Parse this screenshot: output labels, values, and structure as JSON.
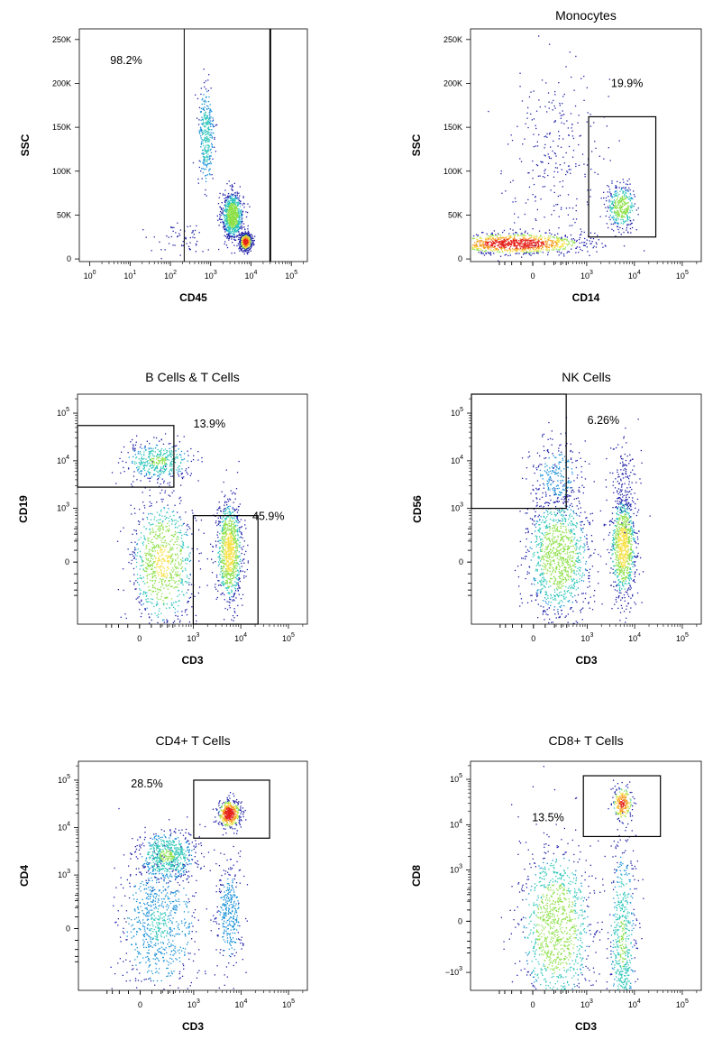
{
  "figure": {
    "colors": {
      "density": [
        "#1e1fa8",
        "#1690d8",
        "#2fc6b9",
        "#8ee04a",
        "#f7e24a",
        "#f59a22",
        "#e5231b"
      ],
      "axis": "#000000",
      "gate": "#000000"
    }
  },
  "chart_data": [
    {
      "type": "scatter",
      "title": "",
      "xlabel": "CD45",
      "ylabel": "SSC",
      "x_scale": "log",
      "y_scale": "linear",
      "xlim": [
        0.55,
        250000
      ],
      "ylim": [
        -3000,
        262144
      ],
      "x_ticks": [
        {
          "base": "10",
          "exp": "0",
          "v": 1
        },
        {
          "base": "10",
          "exp": "1",
          "v": 10
        },
        {
          "base": "10",
          "exp": "2",
          "v": 100
        },
        {
          "base": "10",
          "exp": "3",
          "v": 1000
        },
        {
          "base": "10",
          "exp": "4",
          "v": 10000
        },
        {
          "base": "10",
          "exp": "5",
          "v": 100000
        }
      ],
      "y_ticks": [
        {
          "label": "250K",
          "v": 250000
        },
        {
          "label": "200K",
          "v": 200000
        },
        {
          "label": "150K",
          "v": 150000
        },
        {
          "label": "100K",
          "v": 100000
        },
        {
          "label": "50K",
          "v": 50000
        },
        {
          "label": "0",
          "v": 0
        }
      ],
      "gates": [
        {
          "type": "range",
          "x": [
            220,
            30000
          ],
          "label": "98.2%",
          "label_at": {
            "x": 8,
            "y": 222000
          }
        }
      ],
      "populations": [
        {
          "name": "granulocytes",
          "x": 3400,
          "y": 50000,
          "sx": 0.13,
          "sy": 13000,
          "n": 900,
          "core": 0.55
        },
        {
          "name": "lymphocytes",
          "x": 7200,
          "y": 20000,
          "sx": 0.07,
          "sy": 4500,
          "n": 750,
          "core": 1.0
        },
        {
          "name": "monocytes",
          "x": 750,
          "y": 140000,
          "sx": 0.1,
          "sy": 30000,
          "n": 320,
          "core": 0.35
        },
        {
          "name": "debris",
          "x": 180,
          "y": 22000,
          "sx": 0.35,
          "sy": 9000,
          "n": 60,
          "core": 0.1
        }
      ]
    },
    {
      "type": "scatter",
      "title": "Monocytes",
      "xlabel": "CD14",
      "ylabel": "SSC",
      "x_scale": "biexponential",
      "y_scale": "linear",
      "xlim": [
        -1500,
        250000
      ],
      "ylim": [
        -3000,
        262144
      ],
      "x_ticks": [
        {
          "base": "0",
          "exp": "",
          "v": 0
        },
        {
          "base": "10",
          "exp": "3",
          "v": 1000
        },
        {
          "base": "10",
          "exp": "4",
          "v": 10000
        },
        {
          "base": "10",
          "exp": "5",
          "v": 100000
        }
      ],
      "y_ticks": [
        {
          "label": "250K",
          "v": 250000
        },
        {
          "label": "200K",
          "v": 200000
        },
        {
          "label": "150K",
          "v": 150000
        },
        {
          "label": "100K",
          "v": 100000
        },
        {
          "label": "50K",
          "v": 50000
        },
        {
          "label": "0",
          "v": 0
        }
      ],
      "gates": [
        {
          "type": "rect",
          "x": [
            1100,
            28000
          ],
          "y": [
            25000,
            162000
          ],
          "label": "19.9%",
          "label_at": {
            "x": 7000,
            "y": 196000
          }
        }
      ],
      "populations": [
        {
          "name": "CD14- cells",
          "x": -150,
          "y": 18000,
          "sx": 280,
          "sy": 6000,
          "n": 1100,
          "core": 1.0
        },
        {
          "name": "CD14+ monocytes",
          "x": 5200,
          "y": 60000,
          "sx": 0.1,
          "sy": 12000,
          "n": 380,
          "core": 0.55
        },
        {
          "name": "granulocytes",
          "x": 200,
          "y": 130000,
          "sx": 500,
          "sy": 45000,
          "n": 260,
          "core": 0.1
        }
      ]
    },
    {
      "type": "scatter",
      "title": "B Cells & T Cells",
      "xlabel": "CD3",
      "ylabel": "CD19",
      "x_scale": "biexponential",
      "y_scale": "biexponential",
      "xlim": [
        -1500,
        250000
      ],
      "ylim": [
        -1500,
        250000
      ],
      "x_ticks": [
        {
          "base": "0",
          "exp": "",
          "v": 0
        },
        {
          "base": "10",
          "exp": "3",
          "v": 1000
        },
        {
          "base": "10",
          "exp": "4",
          "v": 10000
        },
        {
          "base": "10",
          "exp": "5",
          "v": 100000
        }
      ],
      "y_ticks": [
        {
          "base": "10",
          "exp": "5",
          "v": 100000
        },
        {
          "base": "10",
          "exp": "4",
          "v": 10000
        },
        {
          "base": "10",
          "exp": "3",
          "v": 1000
        },
        {
          "base": "0",
          "exp": "",
          "v": 0
        }
      ],
      "gates": [
        {
          "type": "rect",
          "x": [
            -1500,
            380
          ],
          "y": [
            2800,
            55000
          ],
          "label": "13.9%",
          "label_at": {
            "x": 2200,
            "y": 50000
          }
        },
        {
          "type": "rect",
          "x": [
            1000,
            23000
          ],
          "y": [
            -1500,
            700
          ],
          "label": "45.9%",
          "label_at": {
            "x": 38000,
            "y": 560
          }
        }
      ],
      "populations": [
        {
          "name": "B cells",
          "x": 150,
          "y": 10000,
          "sx": 250,
          "sy": 0.13,
          "n": 430,
          "core": 0.45
        },
        {
          "name": "CD3- CD19- cells",
          "x": 200,
          "y": 0,
          "sx": 270,
          "sy": 340,
          "n": 900,
          "core": 0.6
        },
        {
          "name": "T cells",
          "x": 5600,
          "y": 80,
          "sx": 0.09,
          "sy": 340,
          "n": 950,
          "core": 0.65
        }
      ]
    },
    {
      "type": "scatter",
      "title": "NK Cells",
      "xlabel": "CD3",
      "ylabel": "CD56",
      "x_scale": "biexponential",
      "y_scale": "biexponential",
      "xlim": [
        -1500,
        250000
      ],
      "ylim": [
        -1500,
        250000
      ],
      "x_ticks": [
        {
          "base": "0",
          "exp": "",
          "v": 0
        },
        {
          "base": "10",
          "exp": "3",
          "v": 1000
        },
        {
          "base": "10",
          "exp": "4",
          "v": 10000
        },
        {
          "base": "10",
          "exp": "5",
          "v": 100000
        }
      ],
      "y_ticks": [
        {
          "base": "10",
          "exp": "5",
          "v": 100000
        },
        {
          "base": "10",
          "exp": "4",
          "v": 10000
        },
        {
          "base": "10",
          "exp": "3",
          "v": 1000
        },
        {
          "base": "0",
          "exp": "",
          "v": 0
        }
      ],
      "gates": [
        {
          "type": "rect",
          "x": [
            -1500,
            350
          ],
          "y": [
            1000,
            250000
          ],
          "label": "6.26%",
          "label_at": {
            "x": 2200,
            "y": 60000
          }
        }
      ],
      "populations": [
        {
          "name": "NK cells",
          "x": 200,
          "y": 5000,
          "sx": 220,
          "sy": 0.25,
          "n": 260,
          "core": 0.2
        },
        {
          "name": "CD3- cells",
          "x": 220,
          "y": 50,
          "sx": 300,
          "sy": 380,
          "n": 1100,
          "core": 0.55
        },
        {
          "name": "T cells",
          "x": 5600,
          "y": 120,
          "sx": 0.09,
          "sy": 400,
          "n": 900,
          "core": 0.65
        },
        {
          "name": "NKT cells",
          "x": 5600,
          "y": 3500,
          "sx": 0.1,
          "sy": 0.3,
          "n": 140,
          "core": 0.1
        }
      ]
    },
    {
      "type": "scatter",
      "title": "CD4+ T Cells",
      "xlabel": "CD3",
      "ylabel": "CD4",
      "x_scale": "biexponential",
      "y_scale": "biexponential",
      "xlim": [
        -1500,
        250000
      ],
      "ylim": [
        -1500,
        250000
      ],
      "x_ticks": [
        {
          "base": "0",
          "exp": "",
          "v": 0
        },
        {
          "base": "10",
          "exp": "3",
          "v": 1000
        },
        {
          "base": "10",
          "exp": "4",
          "v": 10000
        },
        {
          "base": "10",
          "exp": "5",
          "v": 100000
        }
      ],
      "y_ticks": [
        {
          "base": "10",
          "exp": "5",
          "v": 100000
        },
        {
          "base": "10",
          "exp": "4",
          "v": 10000
        },
        {
          "base": "10",
          "exp": "3",
          "v": 1000
        },
        {
          "base": "0",
          "exp": "",
          "v": 0
        }
      ],
      "gates": [
        {
          "type": "rect",
          "x": [
            1000,
            40000
          ],
          "y": [
            6000,
            100000
          ],
          "label": "28.5%",
          "label_at": {
            "x": 50,
            "y": 70000
          }
        }
      ],
      "populations": [
        {
          "name": "CD4+ T cells",
          "x": 5500,
          "y": 20000,
          "sx": 0.08,
          "sy": 0.1,
          "n": 480,
          "core": 1.0
        },
        {
          "name": "CD4 dim monocytes",
          "x": 250,
          "y": 2600,
          "sx": 280,
          "sy": 0.18,
          "n": 650,
          "core": 0.45
        },
        {
          "name": "CD4- CD3- cells",
          "x": 150,
          "y": 30,
          "sx": 300,
          "sy": 420,
          "n": 750,
          "core": 0.3
        },
        {
          "name": "CD4- T cells",
          "x": 5500,
          "y": 100,
          "sx": 0.09,
          "sy": 380,
          "n": 330,
          "core": 0.25
        }
      ]
    },
    {
      "type": "scatter",
      "title": "CD8+ T Cells",
      "xlabel": "CD3",
      "ylabel": "CD8",
      "x_scale": "biexponential",
      "y_scale": "biexponential",
      "xlim": [
        -1500,
        250000
      ],
      "ylim": [
        -2500,
        250000
      ],
      "x_ticks": [
        {
          "base": "0",
          "exp": "",
          "v": 0
        },
        {
          "base": "10",
          "exp": "3",
          "v": 1000
        },
        {
          "base": "10",
          "exp": "4",
          "v": 10000
        },
        {
          "base": "10",
          "exp": "5",
          "v": 100000
        }
      ],
      "y_ticks": [
        {
          "base": "10",
          "exp": "5",
          "v": 100000
        },
        {
          "base": "10",
          "exp": "4",
          "v": 10000
        },
        {
          "base": "10",
          "exp": "3",
          "v": 1000
        },
        {
          "base": "0",
          "exp": "",
          "v": 0
        },
        {
          "base": "−10",
          "exp": "3",
          "v": -1000
        }
      ],
      "gates": [
        {
          "type": "rect",
          "x": [
            850,
            35000
          ],
          "y": [
            5500,
            120000
          ],
          "label": "13.5%",
          "label_at": {
            "x": 120,
            "y": 12000
          }
        }
      ],
      "populations": [
        {
          "name": "CD8+ T cells",
          "x": 5500,
          "y": 30000,
          "sx": 0.07,
          "sy": 0.12,
          "n": 230,
          "core": 0.9
        },
        {
          "name": "CD3- cells",
          "x": 200,
          "y": -50,
          "sx": 330,
          "sy": 480,
          "n": 1100,
          "core": 0.55
        },
        {
          "name": "CD8- T cells",
          "x": 5500,
          "y": -200,
          "sx": 0.09,
          "sy": 480,
          "n": 620,
          "core": 0.45
        }
      ]
    }
  ]
}
